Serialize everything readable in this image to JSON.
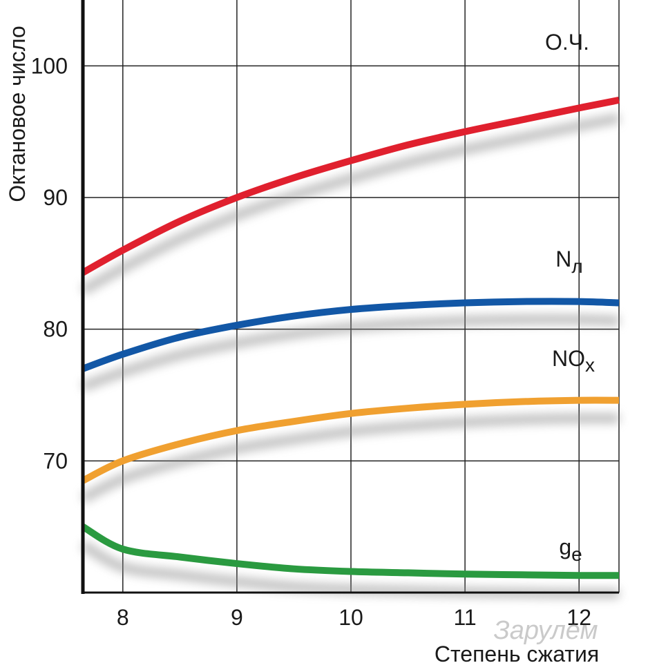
{
  "chart_data": {
    "type": "line",
    "ylabel": "Октановое число",
    "xlabel": "Степень сжатия",
    "xlim": [
      7.65,
      12.35
    ],
    "ylim": [
      60,
      105
    ],
    "xticks": [
      "8",
      "9",
      "10",
      "11",
      "12"
    ],
    "yticks": [
      "70",
      "80",
      "90",
      "100"
    ],
    "grid": true,
    "series": [
      {
        "name": "О.Ч.",
        "color": "#e0202e",
        "x": [
          7.65,
          8,
          8.5,
          9,
          9.5,
          10,
          10.5,
          11,
          11.5,
          12,
          12.35
        ],
        "y": [
          84.3,
          86.0,
          88.2,
          90.0,
          91.5,
          92.8,
          94.0,
          95.0,
          95.9,
          96.8,
          97.4
        ]
      },
      {
        "name": "Nл",
        "color": "#1257a6",
        "x": [
          7.65,
          8,
          8.5,
          9,
          9.5,
          10,
          10.5,
          11,
          11.5,
          12,
          12.35
        ],
        "y": [
          77.0,
          78.1,
          79.4,
          80.3,
          81.0,
          81.5,
          81.8,
          82.0,
          82.1,
          82.1,
          82.0
        ]
      },
      {
        "name": "NOx",
        "color": "#f0a030",
        "x": [
          7.65,
          8,
          8.5,
          9,
          9.5,
          10,
          10.5,
          11,
          11.5,
          12,
          12.35
        ],
        "y": [
          68.5,
          70.0,
          71.3,
          72.3,
          73.0,
          73.6,
          74.0,
          74.3,
          74.5,
          74.6,
          74.6
        ]
      },
      {
        "name": "ge",
        "color": "#2a9a40",
        "x": [
          7.65,
          8,
          8.5,
          9,
          9.5,
          10,
          10.5,
          11,
          11.5,
          12,
          12.35
        ],
        "y": [
          65.0,
          63.3,
          62.7,
          62.2,
          61.8,
          61.6,
          61.5,
          61.4,
          61.35,
          61.3,
          61.3
        ]
      }
    ]
  },
  "watermark": "Зарулем"
}
